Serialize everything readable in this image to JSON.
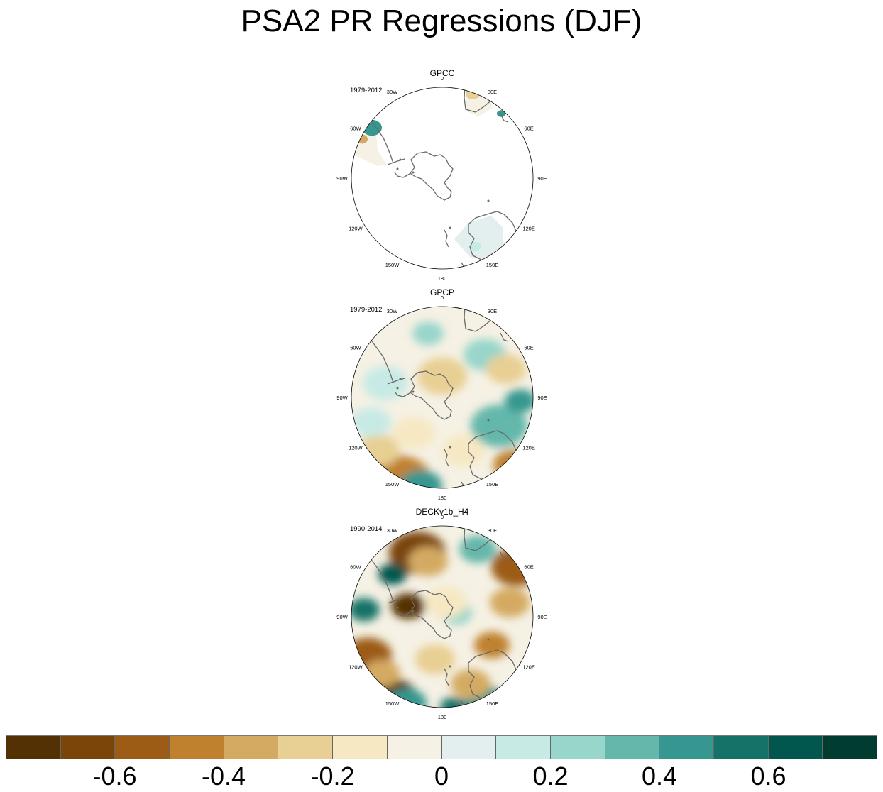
{
  "chart_data": {
    "type": "heatmap",
    "title": "PSA2 PR Regressions (DJF)",
    "projection": "south-polar-stereographic",
    "longitude_labels": [
      "0",
      "30E",
      "60E",
      "90E",
      "120E",
      "150E",
      "180",
      "150W",
      "120W",
      "90W",
      "60W",
      "30W"
    ],
    "panels": [
      {
        "name": "GPCC",
        "period": "1979-2012",
        "coverage": "land only"
      },
      {
        "name": "GPCP",
        "period": "1979-2012",
        "coverage": "global"
      },
      {
        "name": "DECKv1b_H4",
        "period": "1990-2014",
        "coverage": "global"
      }
    ],
    "colorbar": {
      "levels": [
        -0.7,
        -0.6,
        -0.5,
        -0.4,
        -0.3,
        -0.2,
        -0.1,
        0,
        0.1,
        0.2,
        0.3,
        0.4,
        0.5,
        0.6,
        0.7
      ],
      "tick_labels": [
        "-0.6",
        "-0.4",
        "-0.2",
        "0",
        "0.2",
        "0.4",
        "0.6"
      ],
      "tick_values": [
        -0.6,
        -0.4,
        -0.2,
        0,
        0.2,
        0.4,
        0.6
      ],
      "colors": [
        "#543005",
        "#7a4509",
        "#9c5c16",
        "#bf812d",
        "#d4aa62",
        "#e8cf93",
        "#f6e8c3",
        "#f5f1e4",
        "#e2efee",
        "#c7eae5",
        "#98d5cb",
        "#63b7ab",
        "#35978f",
        "#157268",
        "#01574e",
        "#003c30"
      ]
    }
  }
}
